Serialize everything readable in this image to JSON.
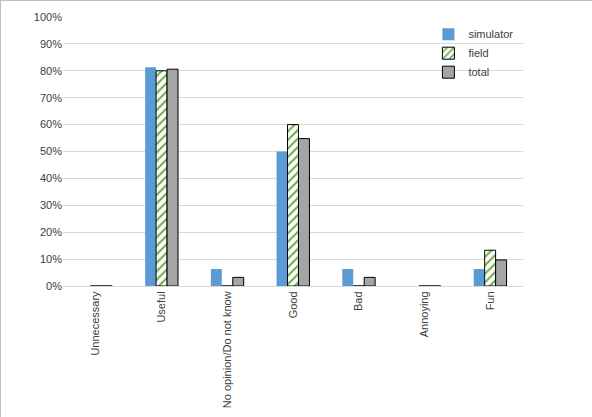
{
  "chart_data": {
    "type": "bar",
    "categories": [
      "Unnecessary",
      "Useful",
      "No opinion/Do not know",
      "Good",
      "Bad",
      "Annoying",
      "Fun"
    ],
    "series": [
      {
        "name": "simulator",
        "color": "#5b9bd5",
        "values": [
          0,
          81.3,
          6.3,
          50,
          6.3,
          0,
          6.3
        ]
      },
      {
        "name": "field",
        "color": "#70ad47",
        "marker": "hatch",
        "values": [
          0,
          80,
          0,
          60,
          0,
          0,
          13.3
        ]
      },
      {
        "name": "total",
        "color": "#a5a5a5",
        "values": [
          0,
          80.6,
          3.2,
          54.8,
          3.2,
          0,
          9.7
        ]
      }
    ],
    "ylim": [
      0,
      100
    ],
    "yticks": [
      {
        "value": 0,
        "label": "0%"
      },
      {
        "value": 10,
        "label": "10%"
      },
      {
        "value": 20,
        "label": "20%"
      },
      {
        "value": 30,
        "label": "30%"
      },
      {
        "value": 40,
        "label": "40%"
      },
      {
        "value": 50,
        "label": "50%"
      },
      {
        "value": 60,
        "label": "60%"
      },
      {
        "value": 70,
        "label": "70%"
      },
      {
        "value": 80,
        "label": "80%"
      },
      {
        "value": 90,
        "label": "90%"
      },
      {
        "value": 100,
        "label": "100%"
      }
    ],
    "grid": true,
    "legend": "top right"
  }
}
